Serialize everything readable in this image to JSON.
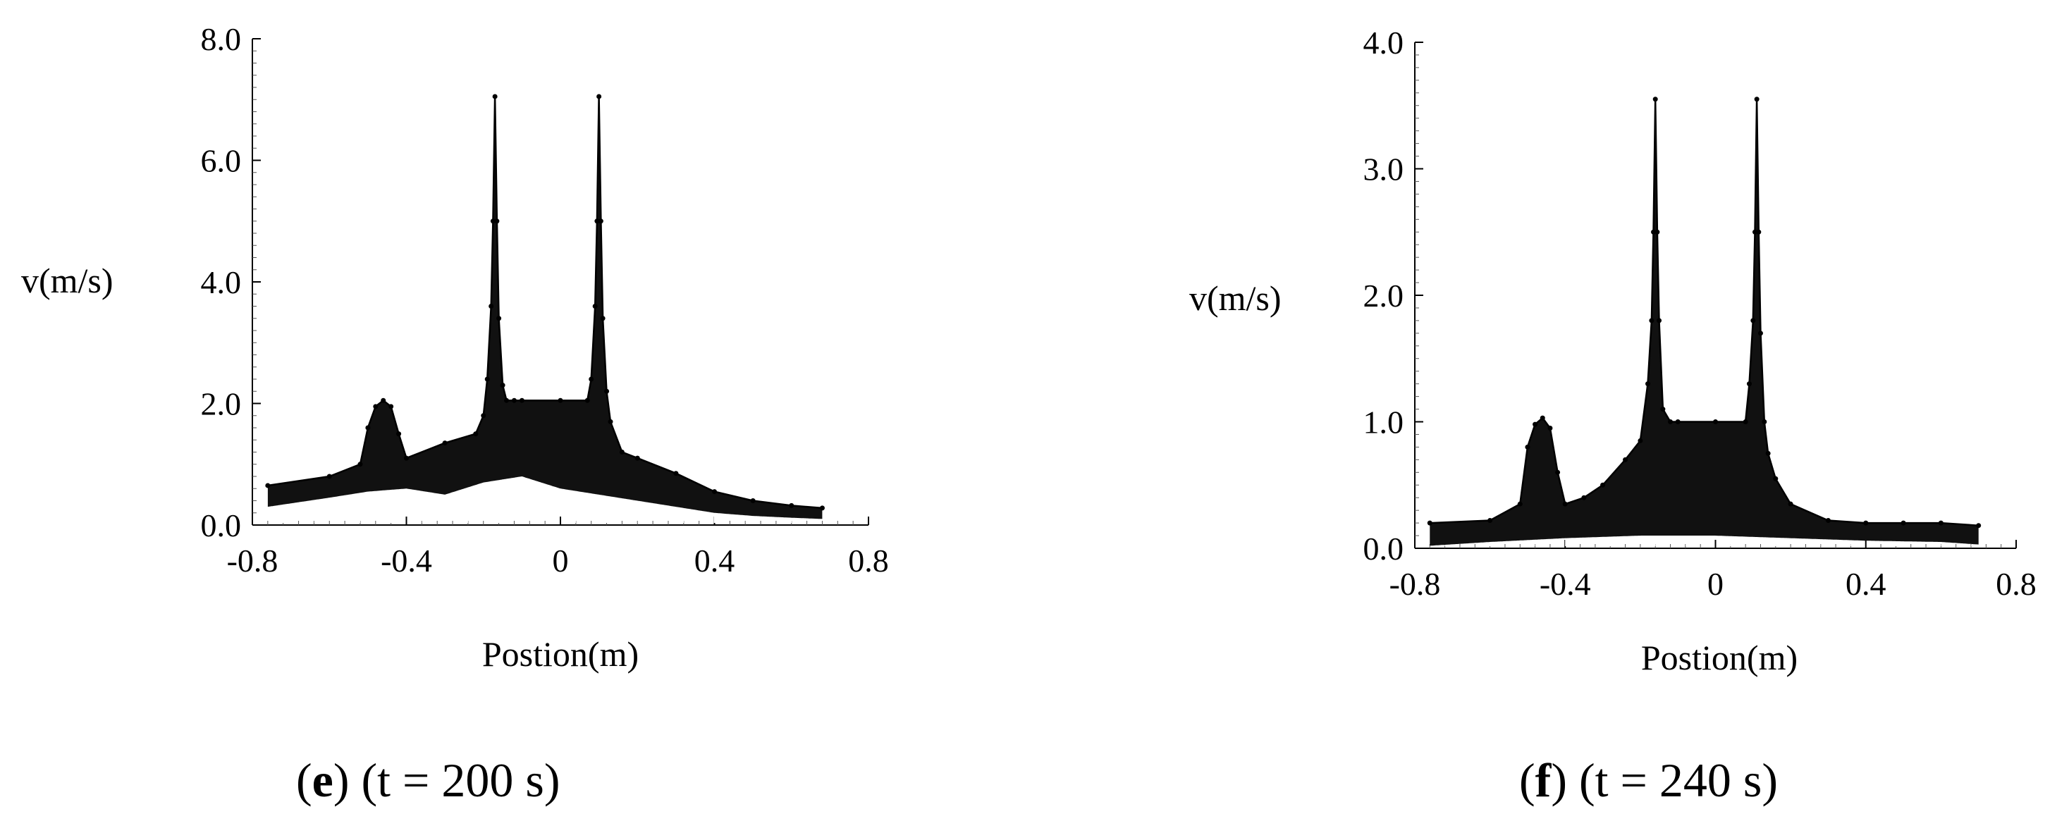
{
  "chart_data": [
    {
      "type": "line",
      "panel_letter": "e",
      "time_label": "t = 200 s",
      "xlabel": "Postion(m)",
      "ylabel": "v(m/s)",
      "xlim": [
        -0.8,
        0.8
      ],
      "ylim": [
        0,
        8
      ],
      "xticks": [
        "-0.8",
        "-0.4",
        "0",
        "0.4",
        "0.8"
      ],
      "yticks": [
        "0.0",
        "2.0",
        "4.0",
        "6.0",
        "8.0"
      ],
      "envelope_upper": {
        "x": [
          -0.76,
          -0.6,
          -0.52,
          -0.5,
          -0.48,
          -0.46,
          -0.44,
          -0.42,
          -0.4,
          -0.3,
          -0.22,
          -0.2,
          -0.19,
          -0.18,
          -0.175,
          -0.17,
          -0.165,
          -0.16,
          -0.15,
          -0.14,
          -0.12,
          -0.1,
          0.0,
          0.07,
          0.08,
          0.09,
          0.095,
          0.1,
          0.105,
          0.11,
          0.12,
          0.13,
          0.16,
          0.2,
          0.3,
          0.4,
          0.5,
          0.6,
          0.68
        ],
        "y": [
          0.65,
          0.8,
          1.0,
          1.6,
          1.95,
          2.05,
          1.95,
          1.5,
          1.1,
          1.35,
          1.5,
          1.8,
          2.4,
          3.6,
          5.0,
          7.05,
          5.0,
          3.4,
          2.3,
          2.05,
          2.05,
          2.05,
          2.05,
          2.05,
          2.4,
          3.6,
          5.0,
          7.05,
          5.0,
          3.4,
          2.2,
          1.7,
          1.2,
          1.1,
          0.85,
          0.55,
          0.4,
          0.32,
          0.28
        ]
      },
      "envelope_lower": {
        "x": [
          -0.76,
          -0.6,
          -0.5,
          -0.4,
          -0.3,
          -0.2,
          -0.1,
          0.0,
          0.1,
          0.2,
          0.3,
          0.4,
          0.5,
          0.6,
          0.68
        ],
        "y": [
          0.3,
          0.45,
          0.55,
          0.6,
          0.5,
          0.7,
          0.8,
          0.6,
          0.5,
          0.4,
          0.3,
          0.2,
          0.15,
          0.12,
          0.1
        ]
      }
    },
    {
      "type": "line",
      "panel_letter": "f",
      "time_label": "t = 240 s",
      "xlabel": "Postion(m)",
      "ylabel": "v(m/s)",
      "xlim": [
        -0.8,
        0.8
      ],
      "ylim": [
        0,
        4
      ],
      "xticks": [
        "-0.8",
        "-0.4",
        "0",
        "0.4",
        "0.8"
      ],
      "yticks": [
        "0.0",
        "1.0",
        "2.0",
        "3.0",
        "4.0"
      ],
      "envelope_upper": {
        "x": [
          -0.76,
          -0.6,
          -0.52,
          -0.5,
          -0.48,
          -0.46,
          -0.44,
          -0.42,
          -0.4,
          -0.35,
          -0.3,
          -0.24,
          -0.2,
          -0.18,
          -0.17,
          -0.165,
          -0.16,
          -0.155,
          -0.15,
          -0.14,
          -0.12,
          -0.1,
          0.0,
          0.08,
          0.09,
          0.1,
          0.105,
          0.11,
          0.115,
          0.12,
          0.13,
          0.14,
          0.16,
          0.2,
          0.3,
          0.4,
          0.5,
          0.6,
          0.7
        ],
        "y": [
          0.2,
          0.22,
          0.35,
          0.8,
          0.98,
          1.03,
          0.95,
          0.6,
          0.35,
          0.4,
          0.5,
          0.7,
          0.85,
          1.3,
          1.8,
          2.5,
          3.55,
          2.5,
          1.8,
          1.1,
          1.0,
          1.0,
          1.0,
          1.0,
          1.3,
          1.8,
          2.5,
          3.55,
          2.5,
          1.7,
          1.0,
          0.75,
          0.55,
          0.35,
          0.22,
          0.2,
          0.2,
          0.2,
          0.18
        ]
      },
      "envelope_lower": {
        "x": [
          -0.76,
          -0.6,
          -0.4,
          -0.2,
          0.0,
          0.2,
          0.4,
          0.6,
          0.7
        ],
        "y": [
          0.02,
          0.05,
          0.08,
          0.1,
          0.1,
          0.08,
          0.06,
          0.05,
          0.03
        ]
      }
    }
  ]
}
